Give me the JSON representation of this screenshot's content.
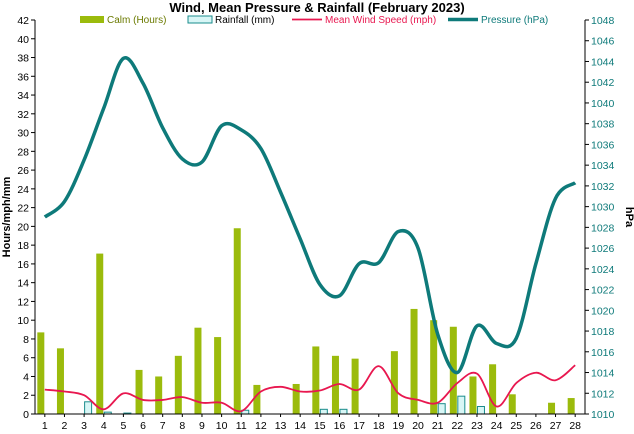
{
  "chart_data": {
    "type": "bar",
    "title": "Wind, Mean Pressure & Rainfall (February 2023)",
    "ylabel": "Hours/mph/mm",
    "y2label": "hPa",
    "ylim": [
      0,
      42
    ],
    "y2lim": [
      1010,
      1048
    ],
    "yticks": [
      "0",
      "2",
      "4",
      "6",
      "8",
      "10",
      "12",
      "14",
      "16",
      "18",
      "20",
      "22",
      "24",
      "26",
      "28",
      "30",
      "32",
      "34",
      "36",
      "38",
      "40",
      "42"
    ],
    "y2ticks": [
      "1010",
      "1012",
      "1014",
      "1016",
      "1018",
      "1020",
      "1022",
      "1024",
      "1026",
      "1028",
      "1030",
      "1032",
      "1034",
      "1036",
      "1038",
      "1040",
      "1042",
      "1044",
      "1046",
      "1048"
    ],
    "categories": [
      "1",
      "2",
      "3",
      "4",
      "5",
      "6",
      "7",
      "8",
      "9",
      "10",
      "11",
      "12",
      "13",
      "14",
      "15",
      "16",
      "17",
      "18",
      "19",
      "20",
      "21",
      "22",
      "23",
      "24",
      "25",
      "26",
      "27",
      "28"
    ],
    "legend_position": "top",
    "grid": false,
    "series": [
      {
        "name": "Calm (Hours)",
        "kind": "bar",
        "axis": "left",
        "color": "#9bbb0c",
        "values": [
          8.7,
          7.0,
          0,
          17.1,
          0,
          4.7,
          4.0,
          6.2,
          9.2,
          8.2,
          19.8,
          3.1,
          0,
          3.2,
          7.2,
          6.2,
          5.9,
          0,
          6.7,
          11.2,
          10.0,
          9.3,
          4.0,
          5.3,
          2.1,
          0,
          1.2,
          1.7
        ]
      },
      {
        "name": "Rainfall (mm)",
        "kind": "bar",
        "axis": "left",
        "color": "#d8f6f6",
        "stroke": "#1a8c8c",
        "values": [
          0,
          0,
          1.3,
          0.2,
          0.1,
          0,
          0,
          0,
          0,
          0,
          0.4,
          0,
          0,
          0,
          0.5,
          0.5,
          0,
          0,
          0,
          0,
          1.1,
          1.9,
          0.8,
          0,
          0,
          0,
          0,
          0
        ]
      },
      {
        "name": "Mean Wind Speed (mph)",
        "kind": "line",
        "axis": "left",
        "color": "#e8174f",
        "values": [
          2.6,
          2.4,
          2.0,
          0.5,
          2.2,
          1.5,
          1.5,
          1.8,
          1.2,
          1.2,
          0.3,
          2.4,
          2.9,
          2.4,
          2.5,
          3.2,
          2.6,
          5.1,
          2.2,
          1.5,
          1.2,
          3.3,
          4.3,
          0.8,
          3.3,
          4.4,
          3.6,
          5.2
        ]
      },
      {
        "name": "Pressure (hPa)",
        "kind": "line",
        "axis": "right",
        "color": "#0e7a7a",
        "values": [
          1029.0,
          1030.5,
          1034.5,
          1039.5,
          1044.3,
          1041.9,
          1037.6,
          1034.6,
          1034.3,
          1037.8,
          1037.4,
          1035.6,
          1031.4,
          1026.9,
          1022.5,
          1021.4,
          1024.5,
          1024.6,
          1027.6,
          1026.0,
          1017.7,
          1014.0,
          1018.5,
          1016.8,
          1017.3,
          1024.5,
          1030.8,
          1032.3
        ]
      }
    ]
  }
}
